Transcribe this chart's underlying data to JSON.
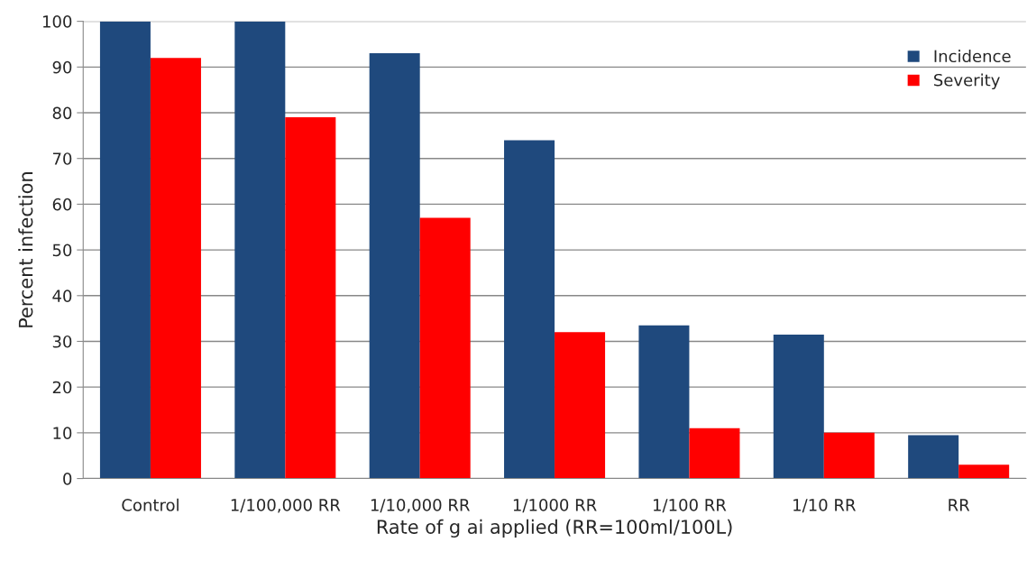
{
  "chart_data": {
    "type": "bar",
    "categories": [
      "Control",
      "1/100,000 RR",
      "1/10,000 RR",
      "1/1000 RR",
      "1/100 RR",
      "1/10 RR",
      "RR"
    ],
    "series": [
      {
        "name": "Incidence",
        "color": "#1f497d",
        "values": [
          100,
          100,
          93,
          74,
          33.5,
          31.5,
          9.5
        ]
      },
      {
        "name": "Severity",
        "color": "#ff0000",
        "values": [
          92,
          79,
          57,
          32,
          11,
          10,
          3
        ]
      }
    ],
    "xlabel": "Rate of g ai applied (RR=100ml/100L)",
    "ylabel": "Percent infection",
    "ylim": [
      0,
      100
    ],
    "yticks": [
      0,
      10,
      20,
      30,
      40,
      50,
      60,
      70,
      80,
      90,
      100
    ],
    "grid": "y",
    "legend": "top right"
  }
}
